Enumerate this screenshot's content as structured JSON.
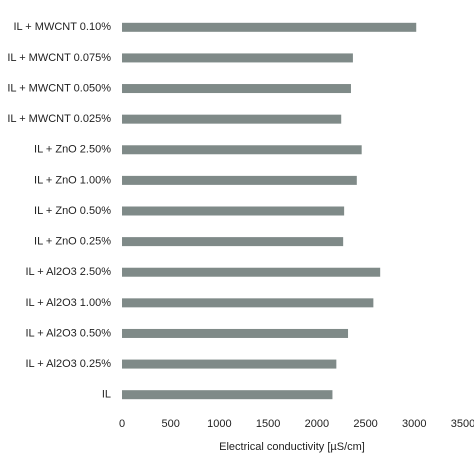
{
  "chart_data": {
    "type": "barh",
    "categories": [
      "IL + MWCNT 0.10%",
      "IL + MWCNT 0.075%",
      "IL + MWCNT 0.050%",
      "IL + MWCNT 0.025%",
      "IL + ZnO 2.50%",
      "IL + ZnO 1.00%",
      "IL + ZnO 0.50%",
      "IL + ZnO 0.25%",
      "IL + Al2O3 2.50%",
      "IL + Al2O3 1.00%",
      "IL + Al2O3 0.50%",
      "IL + Al2O3 0.25%",
      "IL"
    ],
    "values": [
      3020,
      2370,
      2350,
      2250,
      2460,
      2410,
      2280,
      2270,
      2650,
      2580,
      2320,
      2200,
      2160
    ],
    "color": "#7f8a88",
    "xlabel": "Electrical conductivity [µS/cm]",
    "xlim": [
      0,
      3500
    ],
    "xticks": [
      0,
      500,
      1000,
      1500,
      2000,
      2500,
      3000,
      3500
    ]
  }
}
